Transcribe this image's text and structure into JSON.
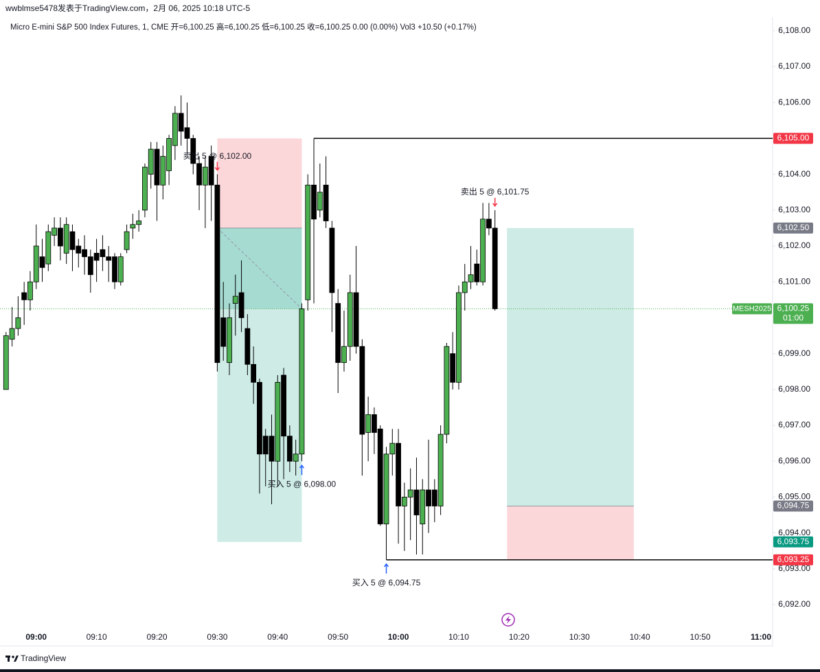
{
  "header": {
    "title": "wwblmse5478发表于TradingView.com，2月 06, 2025 10:18 UTC-5"
  },
  "chart_data": {
    "type": "candlestick",
    "legend": "Micro E-mini S&P 500 Index Futures, 1, CME  开=6,100.25  高=6,100.25  低=6,100.25  收=6,100.25  0.00 (0.00%)  Vol3  +10.50 (+0.17%)",
    "up_color": "#4caf50",
    "down_color": "#000000",
    "x": [
      "08:55",
      "08:56",
      "08:57",
      "08:58",
      "08:59",
      "09:00",
      "09:01",
      "09:02",
      "09:03",
      "09:04",
      "09:05",
      "09:06",
      "09:07",
      "09:08",
      "09:09",
      "09:10",
      "09:11",
      "09:12",
      "09:13",
      "09:14",
      "09:15",
      "09:16",
      "09:17",
      "09:18",
      "09:19",
      "09:20",
      "09:21",
      "09:22",
      "09:23",
      "09:24",
      "09:25",
      "09:26",
      "09:27",
      "09:28",
      "09:29",
      "09:30",
      "09:31",
      "09:32",
      "09:33",
      "09:34",
      "09:35",
      "09:36",
      "09:37",
      "09:38",
      "09:39",
      "09:40",
      "09:41",
      "09:42",
      "09:43",
      "09:44",
      "09:45",
      "09:46",
      "09:47",
      "09:48",
      "09:49",
      "09:50",
      "09:51",
      "09:52",
      "09:53",
      "09:54",
      "09:55",
      "09:56",
      "09:57",
      "09:58",
      "09:59",
      "10:00",
      "10:01",
      "10:02",
      "10:03",
      "10:04",
      "10:05",
      "10:06",
      "10:07",
      "10:08",
      "10:09",
      "10:10",
      "10:11",
      "10:12",
      "10:13",
      "10:14",
      "10:15",
      "10:16"
    ],
    "open": [
      6098.0,
      6099.4,
      6099.7,
      6100.7,
      6100.5,
      6101.0,
      6101.7,
      6101.5,
      6102.3,
      6102.5,
      6101.8,
      6102.4,
      6102.0,
      6101.9,
      6101.7,
      6101.8,
      6101.9,
      6101.7,
      6101.7,
      6101.0,
      6101.9,
      6102.5,
      6102.6,
      6103.0,
      6104.0,
      6104.7,
      6103.7,
      6104.1,
      6104.8,
      6105.7,
      6105.3,
      6105.0,
      6104.3,
      6103.7,
      6104.5,
      6103.7,
      6100.0,
      6098.75,
      6100.4,
      6100.7,
      6099.7,
      6098.7,
      6098.2,
      6096.7,
      6096.7,
      6096.0,
      6098.4,
      6096.7,
      6096.0,
      6096.2,
      6100.5,
      6103.7,
      6103.0,
      6103.7,
      6102.5,
      6100.4,
      6098.75,
      6099.2,
      6100.7,
      6099.2,
      6096.8,
      6097.3,
      6096.9,
      6094.25,
      6096.2,
      6096.5,
      6094.75,
      6095.0,
      6095.2,
      6094.25,
      6095.2,
      6095.2,
      6094.75,
      6096.75,
      6099.0,
      6098.2,
      6100.7,
      6101.0,
      6101.5,
      6101.0,
      6102.75,
      6102.5
    ],
    "high": [
      6099.6,
      6100.3,
      6100.6,
      6101.0,
      6101.3,
      6102.6,
      6102.2,
      6102.6,
      6102.8,
      6102.8,
      6102.8,
      6102.6,
      6102.2,
      6102.3,
      6101.9,
      6102.2,
      6102.3,
      6102.0,
      6101.8,
      6101.8,
      6102.6,
      6102.9,
      6103.0,
      6104.3,
      6104.9,
      6104.9,
      6104.8,
      6105.1,
      6105.9,
      6106.2,
      6106.0,
      6105.1,
      6104.5,
      6104.5,
      6104.8,
      6104.0,
      6101.0,
      6100.4,
      6101.2,
      6101.6,
      6100.1,
      6099.2,
      6098.3,
      6096.9,
      6097.3,
      6098.4,
      6098.6,
      6097.0,
      6096.6,
      6100.4,
      6104.0,
      6105.0,
      6104.3,
      6104.5,
      6102.7,
      6100.8,
      6100.2,
      6101.2,
      6102.0,
      6099.4,
      6097.8,
      6097.5,
      6097.0,
      6096.4,
      6096.9,
      6096.9,
      6095.4,
      6095.8,
      6096.1,
      6095.5,
      6096.6,
      6095.5,
      6097.0,
      6099.3,
      6099.6,
      6100.9,
      6101.5,
      6102.0,
      6101.9,
      6103.2,
      6103.2,
      6103.0
    ],
    "low": [
      6098.0,
      6099.2,
      6099.5,
      6099.8,
      6100.2,
      6100.8,
      6101.0,
      6101.3,
      6102.0,
      6101.6,
      6101.5,
      6101.3,
      6101.4,
      6101.2,
      6100.7,
      6101.0,
      6101.3,
      6101.0,
      6100.8,
      6100.9,
      6101.8,
      6102.2,
      6102.4,
      6102.8,
      6103.6,
      6102.7,
      6103.3,
      6103.7,
      6104.4,
      6104.8,
      6104.6,
      6104.0,
      6103.0,
      6102.5,
      6102.7,
      6098.5,
      6098.8,
      6098.4,
      6099.5,
      6099.6,
      6098.4,
      6097.6,
      6095.1,
      6095.3,
      6094.8,
      6095.3,
      6095.5,
      6095.7,
      6095.6,
      6096.0,
      6100.2,
      6100.4,
      6102.8,
      6102.5,
      6099.6,
      6097.9,
      6098.5,
      6098.8,
      6099.0,
      6095.6,
      6096.0,
      6096.2,
      6094.2,
      6093.25,
      6095.6,
      6093.7,
      6093.5,
      6093.8,
      6093.4,
      6093.4,
      6094.0,
      6094.3,
      6094.5,
      6096.5,
      6098.0,
      6098.0,
      6100.2,
      6100.8,
      6100.9,
      6100.9,
      6102.3,
      6100.2
    ],
    "close": [
      6099.5,
      6099.7,
      6100.0,
      6100.5,
      6101.0,
      6102.0,
      6101.4,
      6102.4,
      6102.5,
      6102.0,
      6102.6,
      6101.9,
      6101.8,
      6101.7,
      6101.2,
      6101.6,
      6101.7,
      6101.6,
      6101.0,
      6101.7,
      6102.4,
      6102.6,
      6102.7,
      6104.2,
      6104.7,
      6103.7,
      6104.5,
      6105.0,
      6105.7,
      6105.2,
      6105.0,
      6104.3,
      6103.7,
      6104.2,
      6103.7,
      6098.75,
      6099.2,
      6100.0,
      6100.6,
      6100.0,
      6098.7,
      6098.2,
      6096.2,
      6096.2,
      6096.0,
      6098.2,
      6096.7,
      6096.0,
      6096.2,
      6100.25,
      6103.7,
      6102.75,
      6103.5,
      6102.7,
      6100.7,
      6098.75,
      6099.2,
      6100.7,
      6099.2,
      6096.75,
      6097.3,
      6096.8,
      6094.25,
      6096.2,
      6096.5,
      6094.75,
      6095.0,
      6095.2,
      6094.5,
      6095.2,
      6094.75,
      6094.75,
      6096.75,
      6099.2,
      6098.2,
      6100.7,
      6101.0,
      6101.2,
      6101.0,
      6102.75,
      6102.5,
      6100.25
    ],
    "xlim": [
      "08:54",
      "11:02"
    ],
    "xticks": [
      "09:00",
      "09:10",
      "09:20",
      "09:30",
      "09:40",
      "09:50",
      "10:00",
      "10:10",
      "10:20",
      "10:30",
      "10:40",
      "10:50",
      "11:00"
    ],
    "ylim": [
      6091.33,
      6108.38
    ],
    "yticks": [
      {
        "value": 6108,
        "label": "6,108.00"
      },
      {
        "value": 6107,
        "label": "6,107.00"
      },
      {
        "value": 6106,
        "label": "6,106.00"
      },
      {
        "value": 6105,
        "label": "6,105.00"
      },
      {
        "value": 6104,
        "label": "6,104.00"
      },
      {
        "value": 6103,
        "label": "6,103.00"
      },
      {
        "value": 6102,
        "label": "6,102.00"
      },
      {
        "value": 6101,
        "label": "6,101.00"
      },
      {
        "value": 6100,
        "label": "6,100.00"
      },
      {
        "value": 6099,
        "label": "6,099.00"
      },
      {
        "value": 6098,
        "label": "6,098.00"
      },
      {
        "value": 6097,
        "label": "6,097.00"
      },
      {
        "value": 6096,
        "label": "6,096.00"
      },
      {
        "value": 6095,
        "label": "6,095.00"
      },
      {
        "value": 6094,
        "label": "6,094.00"
      },
      {
        "value": 6093,
        "label": "6,093.00"
      },
      {
        "value": 6092,
        "label": "6,092.00"
      }
    ],
    "trades": [
      {
        "time": "09:30",
        "side": "sell",
        "label": "卖出 5 @ 6,102.00"
      },
      {
        "time": "09:44",
        "side": "buy",
        "label": "买入 5 @ 6,098.00"
      },
      {
        "time": "09:58",
        "side": "buy",
        "label": "买入 5 @ 6,094.75"
      },
      {
        "time": "10:16",
        "side": "sell",
        "label": "卖出 5 @ 6,101.75"
      }
    ],
    "positions": [
      {
        "from": "09:30",
        "to": "09:44",
        "entry": 6102.5,
        "stop": 6105.0,
        "target": 6093.75
      },
      {
        "from": "10:18",
        "to": "10:39",
        "entry": 6094.75,
        "stop": 6093.25,
        "target": 6102.5
      }
    ],
    "levels": [
      {
        "from": "09:46",
        "value": 6105.0
      },
      {
        "from": "09:58",
        "value": 6093.25
      }
    ],
    "axis_labels": [
      {
        "value": 6105.0,
        "label": "6,105.00",
        "color": "#f23645"
      },
      {
        "value": 6102.5,
        "label": "6,102.50",
        "color": "#787b86"
      },
      {
        "value": 6094.75,
        "label": "6,094.75",
        "color": "#787b86"
      },
      {
        "value": 6093.75,
        "label": "6,093.75",
        "color": "#089981"
      },
      {
        "value": 6093.25,
        "label": "6,093.25",
        "color": "#f23645"
      }
    ],
    "last_price": {
      "symbol": "MESH2025",
      "value": 6100.25,
      "label": "6,100.25",
      "countdown": "01:00",
      "color": "#4caf50"
    }
  },
  "footer": {
    "brand": "TradingView"
  }
}
